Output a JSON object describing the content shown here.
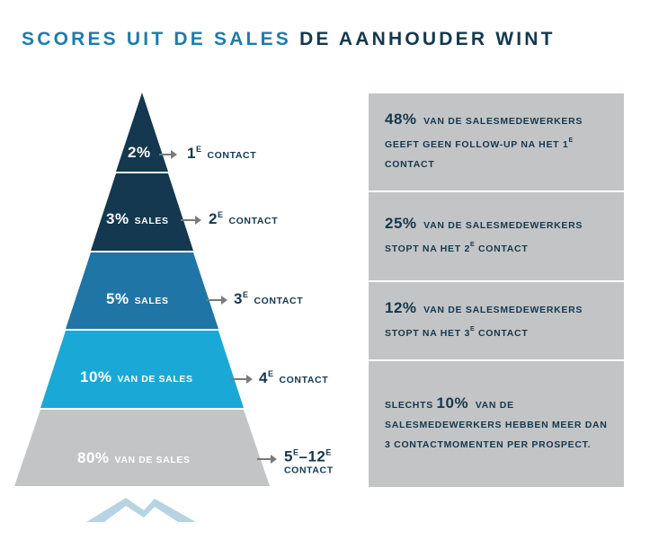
{
  "title": {
    "part1": "SCORES UIT DE SALES",
    "part2": "DE AANHOUDER WINT"
  },
  "colors": {
    "tier1": "#13384f",
    "tier2": "#13384f",
    "tier3": "#1f75a6",
    "tier4": "#1aa9d6",
    "tier5": "#c3c4c6",
    "accent": "#1f7bab",
    "navy": "#13384f",
    "box": "#c3c4c6",
    "arrow": "#7a7a7a"
  },
  "tiers": [
    {
      "pct": "2%",
      "unit": "",
      "contact_num": "1",
      "contact_sup": "E",
      "contact_word": "CONTACT"
    },
    {
      "pct": "3%",
      "unit": "SALES",
      "contact_num": "2",
      "contact_sup": "E",
      "contact_word": "CONTACT"
    },
    {
      "pct": "5%",
      "unit": "SALES",
      "contact_num": "3",
      "contact_sup": "E",
      "contact_word": "CONTACT"
    },
    {
      "pct": "10%",
      "unit": "VAN DE SALES",
      "contact_num": "4",
      "contact_sup": "E",
      "contact_word": "CONTACT"
    },
    {
      "pct": "80%",
      "unit": "VAN DE SALES",
      "contact_num": "5",
      "contact_sup": "E",
      "contact_dash": "–12",
      "contact_sup2": "E",
      "contact_word": "CONTACT"
    }
  ],
  "stats": [
    {
      "big": "48%",
      "text": "VAN DE SALESMEDEWERKERS GEEFT GEEN FOLLOW-UP NA HET 1",
      "sup": "E",
      "tail": "CONTACT"
    },
    {
      "big": "25%",
      "text": "VAN DE SALESMEDEWERKERS STOPT NA HET 2",
      "sup": "E",
      "tail": "CONTACT"
    },
    {
      "big": "12%",
      "text": "VAN DE SALESMEDEWERKERS STOPT NA HET 3",
      "sup": "E",
      "tail": "CONTACT"
    },
    {
      "pre": "SLECHTS",
      "big": "10%",
      "text": "VAN DE SALESMEDEWERKERS HEBBEN MEER DAN 3 CONTACTMOMENTEN PER PROSPECT."
    }
  ]
}
